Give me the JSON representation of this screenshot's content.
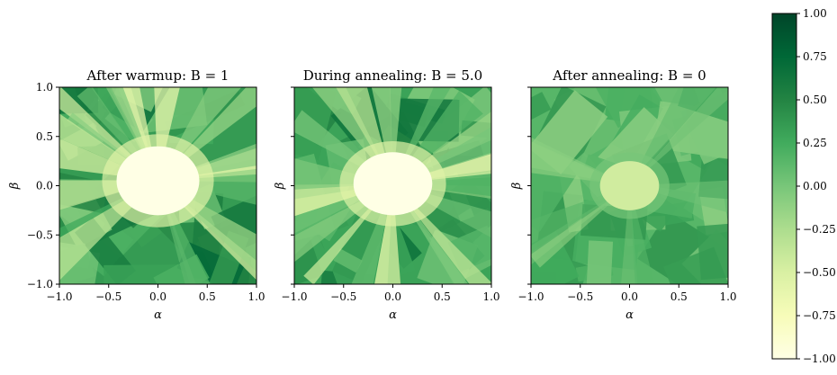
{
  "chart_data": [
    {
      "type": "heatmap",
      "title": "After warmup: B = 1",
      "xlabel": "α",
      "ylabel": "β",
      "xlim": [
        -1.0,
        1.0
      ],
      "ylim": [
        -1.0,
        1.0
      ],
      "xticks": [
        "−1.0",
        "−0.5",
        "0.0",
        "0.5",
        "1.0"
      ],
      "yticks": [
        "−1.0",
        "−0.5",
        "0.0",
        "0.5",
        "1.0"
      ],
      "center_blob": {
        "cx": 0.0,
        "cy": 0.05,
        "rx": 0.42,
        "ry": 0.35,
        "value": -1.0
      },
      "background_value": 0.35
    },
    {
      "type": "heatmap",
      "title": "During annealing: B = 5.0",
      "xlabel": "α",
      "ylabel": "β",
      "xlim": [
        -1.0,
        1.0
      ],
      "ylim": [
        -1.0,
        1.0
      ],
      "xticks": [
        "−1.0",
        "−0.5",
        "0.0",
        "0.5",
        "1.0"
      ],
      "yticks": [
        "",
        "",
        "",
        "",
        ""
      ],
      "center_blob": {
        "cx": 0.0,
        "cy": 0.02,
        "rx": 0.4,
        "ry": 0.32,
        "value": -1.0
      },
      "background_value": 0.3
    },
    {
      "type": "heatmap",
      "title": "After annealing: B = 0",
      "xlabel": "α",
      "ylabel": "β",
      "xlim": [
        -1.0,
        1.0
      ],
      "ylim": [
        -1.0,
        1.0
      ],
      "xticks": [
        "−1.0",
        "−0.5",
        "0.0",
        "0.5",
        "1.0"
      ],
      "yticks": [
        "",
        "",
        "",
        "",
        ""
      ],
      "center_blob": {
        "cx": 0.0,
        "cy": 0.0,
        "rx": 0.3,
        "ry": 0.25,
        "value": -0.45
      },
      "background_value": 0.15
    }
  ],
  "colorbar": {
    "cmap": "YlGn",
    "vmin": -1.0,
    "vmax": 1.0,
    "ticks": [
      "1.00",
      "0.75",
      "0.50",
      "0.25",
      "0.00",
      "−0.25",
      "−0.50",
      "−0.75",
      "−1.00"
    ],
    "colors": [
      "#ffffe5",
      "#f7fcb9",
      "#d9f0a3",
      "#addd8e",
      "#78c679",
      "#41ab5d",
      "#238443",
      "#006837",
      "#004529"
    ]
  }
}
